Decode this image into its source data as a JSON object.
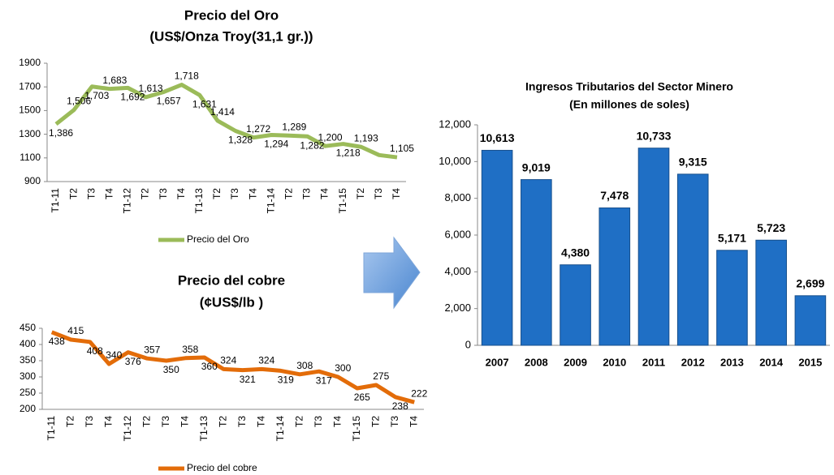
{
  "chart_data": [
    {
      "type": "line",
      "title": "Precio del Oro",
      "subtitle": "(US$/Onza Troy(31,1 gr.))",
      "categories": [
        "T1-11",
        "T2",
        "T3",
        "T4",
        "T1-12",
        "T2",
        "T3",
        "T4",
        "T1-13",
        "T2",
        "T3",
        "T4",
        "T1-14",
        "T2",
        "T3",
        "T4",
        "T1-15",
        "T2",
        "T3",
        "T4"
      ],
      "series": [
        {
          "name": "Precio del Oro",
          "color": "#9bbb59",
          "values": [
            1386,
            1506,
            1703,
            1683,
            1692,
            1613,
            1657,
            1718,
            1631,
            1414,
            1328,
            1272,
            1294,
            1289,
            1282,
            1200,
            1218,
            1193,
            1124,
            1105
          ],
          "value_labels": [
            "1,386",
            "1,506",
            "1,703",
            "1,683",
            "1,692",
            "1,613",
            "1,657",
            "1,718",
            "1,631",
            "1,414",
            "1,328",
            "1,272",
            "1,294",
            "1,289",
            "1,282",
            "1,200",
            "1,218",
            "1,193",
            null,
            "1,105"
          ]
        }
      ],
      "ylim": [
        900,
        1900
      ],
      "yticks": [
        900,
        1100,
        1300,
        1500,
        1700,
        1900
      ],
      "legend": "bottom"
    },
    {
      "type": "line",
      "title": "Precio del cobre",
      "subtitle": "(¢US$/lb )",
      "categories": [
        "T1-11",
        "T2",
        "T3",
        "T4",
        "T1-12",
        "T2",
        "T3",
        "T4",
        "T1-13",
        "T2",
        "T3",
        "T4",
        "T1-14",
        "T2",
        "T3",
        "T4",
        "T1-15",
        "T2",
        "T3",
        "T4"
      ],
      "series": [
        {
          "name": "Precio del cobre",
          "color": "#e36c09",
          "values": [
            438,
            415,
            408,
            340,
            376,
            357,
            350,
            358,
            360,
            324,
            321,
            324,
            319,
            308,
            317,
            300,
            265,
            275,
            238,
            222
          ]
        }
      ],
      "ylim": [
        200,
        450
      ],
      "yticks": [
        200,
        250,
        300,
        350,
        400,
        450
      ],
      "legend": "bottom"
    },
    {
      "type": "bar",
      "title": "Ingresos Tributarios del Sector Minero",
      "subtitle": "(En millones  de soles)",
      "categories": [
        "2007",
        "2008",
        "2009",
        "2010",
        "2011",
        "2012",
        "2013",
        "2014",
        "2015"
      ],
      "values": [
        10613,
        9019,
        4380,
        7478,
        10733,
        9315,
        5171,
        5723,
        2699
      ],
      "value_labels": [
        "10,613",
        "9,019",
        "4,380",
        "7,478",
        "10,733",
        "9,315",
        "5,171",
        "5,723",
        "2,699"
      ],
      "color": "#1f6fc5",
      "ylim": [
        0,
        12000
      ],
      "yticks": [
        0,
        {
          "value": 2000,
          "label": "2,000"
        },
        {
          "value": 4000,
          "label": "4,000"
        },
        {
          "value": 6000,
          "label": "6,000"
        },
        {
          "value": 8000,
          "label": "8,000"
        },
        {
          "value": 10000,
          "label": "10,000"
        },
        {
          "value": 12000,
          "label": "12,000"
        }
      ]
    }
  ]
}
